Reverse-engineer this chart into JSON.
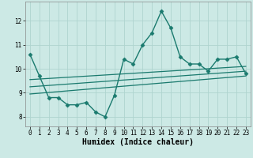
{
  "title": "",
  "xlabel": "Humidex (Indice chaleur)",
  "ylabel": "",
  "background_color": "#cce9e5",
  "line_color": "#1a7a6e",
  "grid_color": "#afd4cf",
  "x_data": [
    0,
    1,
    2,
    3,
    4,
    5,
    6,
    7,
    8,
    9,
    10,
    11,
    12,
    13,
    14,
    15,
    16,
    17,
    18,
    19,
    20,
    21,
    22,
    23
  ],
  "y_data": [
    10.6,
    9.7,
    8.8,
    8.8,
    8.5,
    8.5,
    8.6,
    8.2,
    8.0,
    8.9,
    10.4,
    10.2,
    11.0,
    11.5,
    12.4,
    11.7,
    10.5,
    10.2,
    10.2,
    9.9,
    10.4,
    10.4,
    10.5,
    9.8
  ],
  "trend1_x": [
    0,
    23
  ],
  "trend1_y": [
    9.55,
    10.1
  ],
  "trend2_x": [
    0,
    23
  ],
  "trend2_y": [
    9.25,
    9.9
  ],
  "trend3_x": [
    0,
    23
  ],
  "trend3_y": [
    8.95,
    9.7
  ],
  "ylim": [
    7.6,
    12.8
  ],
  "xlim": [
    -0.5,
    23.5
  ],
  "yticks": [
    8,
    9,
    10,
    11,
    12
  ],
  "xticks": [
    0,
    1,
    2,
    3,
    4,
    5,
    6,
    7,
    8,
    9,
    10,
    11,
    12,
    13,
    14,
    15,
    16,
    17,
    18,
    19,
    20,
    21,
    22,
    23
  ],
  "tick_fontsize": 5.5,
  "xlabel_fontsize": 7,
  "marker": "D",
  "markersize": 2.5
}
